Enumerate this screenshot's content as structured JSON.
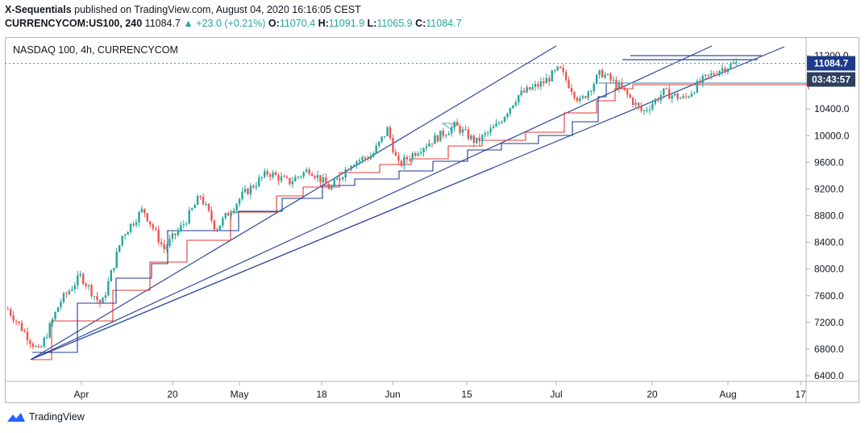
{
  "header": {
    "line1_name": "X-Sequentials",
    "line1_rest": " published on TradingView.com, August 04, 2020 16:16:05 CEST",
    "symbol": "CURRENCYCOM:US100, 240",
    "last": "11084.7",
    "change": "▲ +23.0 (+0.21%)",
    "o_label": "O:",
    "o_val": "11070.4",
    "h_label": "H:",
    "h_val": "11091.9",
    "l_label": "L:",
    "l_val": "11065.9",
    "c_label": "C:",
    "c_val": "11084.7"
  },
  "pane_title": "NASDAQ 100, 4h, CURRENCYCOM",
  "price_badge": "11084.7",
  "countdown_badge": "03:43:57",
  "footer_brand": "TradingView",
  "colors": {
    "up": "#26a69a",
    "down": "#ef5350",
    "trend_blue": "#2e4a9e",
    "step_red": "#e53935",
    "step_blue": "#1f3b8f",
    "hline_cyan": "#5ba3c9",
    "badge_blue": "#1e3a8a",
    "badge_grey": "#2c4060"
  },
  "chart_data": {
    "type": "candlestick",
    "y_axis": {
      "ticks": [
        "11200.0",
        "10800.0",
        "10400.0",
        "10000.0",
        "9600.0",
        "9200.0",
        "8800.0",
        "8400.0",
        "8000.0",
        "7600.0",
        "7200.0",
        "6800.0",
        "6400.0"
      ],
      "ylim": [
        6400,
        11200
      ]
    },
    "x_axis": {
      "ticks": [
        "Apr",
        "20",
        "May",
        "18",
        "Jun",
        "15",
        "Jul",
        "20",
        "Aug",
        "17"
      ]
    },
    "series_path": [
      [
        0,
        7400
      ],
      [
        6,
        6750
      ],
      [
        10,
        7500
      ],
      [
        14,
        7900
      ],
      [
        18,
        7450
      ],
      [
        22,
        8500
      ],
      [
        26,
        8900
      ],
      [
        30,
        8300
      ],
      [
        34,
        8700
      ],
      [
        37,
        9100
      ],
      [
        40,
        8600
      ],
      [
        45,
        9100
      ],
      [
        50,
        9450
      ],
      [
        54,
        9300
      ],
      [
        58,
        9500
      ],
      [
        62,
        9200
      ],
      [
        66,
        9600
      ],
      [
        70,
        9700
      ],
      [
        73,
        10100
      ],
      [
        75,
        9550
      ],
      [
        79,
        9800
      ],
      [
        83,
        10000
      ],
      [
        86,
        10150
      ],
      [
        90,
        9900
      ],
      [
        94,
        10150
      ],
      [
        98,
        10600
      ],
      [
        103,
        10800
      ],
      [
        106,
        11000
      ],
      [
        110,
        10500
      ],
      [
        114,
        10950
      ],
      [
        118,
        10700
      ],
      [
        122,
        10350
      ],
      [
        126,
        10650
      ],
      [
        130,
        10550
      ],
      [
        133,
        10800
      ],
      [
        137,
        11000
      ],
      [
        140,
        11085
      ]
    ],
    "last_close": 11084.7
  }
}
